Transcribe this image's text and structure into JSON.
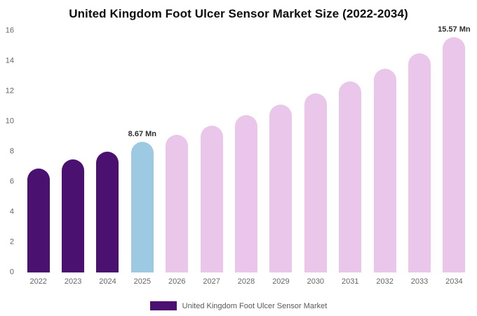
{
  "chart_data": {
    "type": "bar",
    "title": "United Kingdom Foot Ulcer Sensor Market Size (2022-2034)",
    "categories": [
      "2022",
      "2023",
      "2024",
      "2025",
      "2026",
      "2027",
      "2028",
      "2029",
      "2030",
      "2031",
      "2032",
      "2033",
      "2034"
    ],
    "values": [
      6.9,
      7.5,
      8.0,
      8.67,
      9.1,
      9.7,
      10.4,
      11.1,
      11.85,
      12.65,
      13.5,
      14.5,
      15.57
    ],
    "unit": "Mn",
    "xlabel": "",
    "ylabel": "",
    "ylim": [
      0,
      16
    ],
    "ytick_step": 2,
    "grid": false,
    "legend": {
      "position": "bottom",
      "label": "United Kingdom Foot Ulcer Sensor Market",
      "swatch_color": "#4a1170"
    },
    "colors": {
      "historical": "#4a1170",
      "highlight": "#9ec9e2",
      "forecast": "#e9c6ea"
    },
    "bar_color_keys": [
      "historical",
      "historical",
      "historical",
      "highlight",
      "forecast",
      "forecast",
      "forecast",
      "forecast",
      "forecast",
      "forecast",
      "forecast",
      "forecast",
      "forecast"
    ],
    "annotations": [
      {
        "category": "2025",
        "text": "8.67 Mn"
      },
      {
        "category": "2034",
        "text": "15.57 Mn"
      }
    ]
  }
}
